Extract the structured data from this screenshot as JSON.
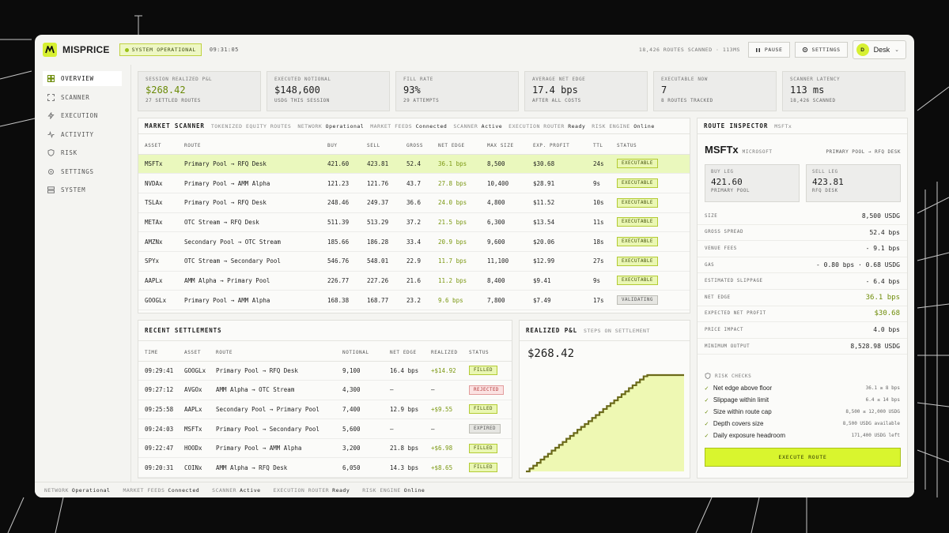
{
  "app": {
    "brand": "MISPRICE",
    "status": "SYSTEM OPERATIONAL",
    "time": "09:31:05"
  },
  "header": {
    "routes_scanned": "18,426 ROUTES SCANNED · 113MS",
    "pause_label": "PAUSE",
    "settings_label": "SETTINGS",
    "user_initial": "D",
    "user_name": "Desk"
  },
  "sidebar": {
    "items": [
      {
        "label": "OVERVIEW",
        "icon": "grid-icon"
      },
      {
        "label": "SCANNER",
        "icon": "scan-icon"
      },
      {
        "label": "EXECUTION",
        "icon": "bolt-icon"
      },
      {
        "label": "ACTIVITY",
        "icon": "activity-icon"
      },
      {
        "label": "RISK",
        "icon": "shield-icon"
      },
      {
        "label": "SETTINGS",
        "icon": "gear-icon"
      },
      {
        "label": "SYSTEM",
        "icon": "server-icon"
      }
    ]
  },
  "kpis": [
    {
      "label": "SESSION REALIZED P&L",
      "value": "$268.42",
      "sub": "27 SETTLED ROUTES"
    },
    {
      "label": "EXECUTED NOTIONAL",
      "value": "$148,600",
      "sub": "USDG THIS SESSION"
    },
    {
      "label": "FILL RATE",
      "value": "93%",
      "sub": "29 ATTEMPTS"
    },
    {
      "label": "AVERAGE NET EDGE",
      "value": "17.4 bps",
      "sub": "AFTER ALL COSTS"
    },
    {
      "label": "EXECUTABLE NOW",
      "value": "7",
      "sub": "8 ROUTES TRACKED"
    },
    {
      "label": "SCANNER LATENCY",
      "value": "113 ms",
      "sub": "18,426 SCANNED"
    }
  ],
  "scanner": {
    "title": "MARKET SCANNER",
    "subtitle": "TOKENIZED EQUITY ROUTES",
    "status": [
      {
        "k": "NETWORK",
        "v": "Operational"
      },
      {
        "k": "MARKET FEEDS",
        "v": "Connected"
      },
      {
        "k": "SCANNER",
        "v": "Active"
      },
      {
        "k": "EXECUTION ROUTER",
        "v": "Ready"
      },
      {
        "k": "RISK ENGINE",
        "v": "Online"
      }
    ],
    "columns": [
      "ASSET",
      "ROUTE",
      "BUY",
      "SELL",
      "GROSS",
      "NET EDGE",
      "MAX SIZE",
      "EXP. PROFIT",
      "TTL",
      "STATUS"
    ],
    "rows": [
      [
        "MSFTx",
        "Primary Pool → RFQ Desk",
        "421.60",
        "423.81",
        "52.4",
        "36.1 bps",
        "8,500",
        "$30.68",
        "24s",
        "EXECUTABLE"
      ],
      [
        "NVDAx",
        "Primary Pool → AMM Alpha",
        "121.23",
        "121.76",
        "43.7",
        "27.8 bps",
        "10,400",
        "$28.91",
        "9s",
        "EXECUTABLE"
      ],
      [
        "TSLAx",
        "Primary Pool → RFQ Desk",
        "248.46",
        "249.37",
        "36.6",
        "24.0 bps",
        "4,800",
        "$11.52",
        "10s",
        "EXECUTABLE"
      ],
      [
        "METAx",
        "OTC Stream → RFQ Desk",
        "511.39",
        "513.29",
        "37.2",
        "21.5 bps",
        "6,300",
        "$13.54",
        "11s",
        "EXECUTABLE"
      ],
      [
        "AMZNx",
        "Secondary Pool → OTC Stream",
        "185.66",
        "186.28",
        "33.4",
        "20.9 bps",
        "9,600",
        "$20.06",
        "18s",
        "EXECUTABLE"
      ],
      [
        "SPYx",
        "OTC Stream → Secondary Pool",
        "546.76",
        "548.01",
        "22.9",
        "11.7 bps",
        "11,100",
        "$12.99",
        "27s",
        "EXECUTABLE"
      ],
      [
        "AAPLx",
        "AMM Alpha → Primary Pool",
        "226.77",
        "227.26",
        "21.6",
        "11.2 bps",
        "8,400",
        "$9.41",
        "9s",
        "EXECUTABLE"
      ],
      [
        "GOOGLx",
        "Primary Pool → AMM Alpha",
        "168.38",
        "168.77",
        "23.2",
        "9.6 bps",
        "7,800",
        "$7.49",
        "17s",
        "VALIDATING"
      ]
    ]
  },
  "settlements": {
    "title": "RECENT SETTLEMENTS",
    "columns": [
      "TIME",
      "ASSET",
      "ROUTE",
      "NOTIONAL",
      "NET EDGE",
      "REALIZED",
      "STATUS"
    ],
    "rows": [
      [
        "09:29:41",
        "GOOGLx",
        "Primary Pool → RFQ Desk",
        "9,100",
        "16.4 bps",
        "+$14.92",
        "FILLED"
      ],
      [
        "09:27:12",
        "AVGOx",
        "AMM Alpha → OTC Stream",
        "4,300",
        "—",
        "—",
        "REJECTED"
      ],
      [
        "09:25:58",
        "AAPLx",
        "Secondary Pool → Primary Pool",
        "7,400",
        "12.9 bps",
        "+$9.55",
        "FILLED"
      ],
      [
        "09:24:03",
        "MSFTx",
        "Primary Pool → Secondary Pool",
        "5,600",
        "—",
        "—",
        "EXPIRED"
      ],
      [
        "09:22:47",
        "HOODx",
        "Primary Pool → AMM Alpha",
        "3,200",
        "21.8 bps",
        "+$6.98",
        "FILLED"
      ],
      [
        "09:20:31",
        "COINx",
        "AMM Alpha → RFQ Desk",
        "6,050",
        "14.3 bps",
        "+$8.65",
        "FILLED"
      ]
    ]
  },
  "pnl": {
    "title": "REALIZED P&L",
    "subtitle": "STEPS ON SETTLEMENT",
    "value": "$268.42"
  },
  "chart_data": {
    "type": "area",
    "title": "REALIZED P&L",
    "series": [
      {
        "values": [
          0,
          8,
          16,
          24,
          33,
          41,
          49,
          58,
          66,
          74,
          82,
          91,
          99,
          107,
          116,
          124,
          132,
          140,
          149,
          157,
          165,
          174,
          182,
          190,
          198,
          207,
          215,
          223,
          232,
          240,
          248,
          256,
          265,
          268.42,
          268.42,
          268.42,
          268.42,
          268.42,
          268.42,
          268.42,
          268.42,
          268.42,
          268.42,
          268.42
        ]
      }
    ],
    "ylim": [
      0,
      268.42
    ],
    "grid": false,
    "colors": {
      "fill": "#eef8b3",
      "line": "#6b6a1a"
    }
  },
  "inspector": {
    "title": "ROUTE INSPECTOR",
    "asset_tag": "MSFTx",
    "asset": "MSFTx",
    "company": "MICROSOFT",
    "route": "PRIMARY POOL → RFQ DESK",
    "buy_leg": {
      "label": "BUY LEG",
      "value": "421.60",
      "venue": "PRIMARY POOL"
    },
    "sell_leg": {
      "label": "SELL LEG",
      "value": "423.81",
      "venue": "RFQ DESK"
    },
    "rows": [
      {
        "label": "SIZE",
        "value": "8,500 USDG"
      },
      {
        "label": "GROSS SPREAD",
        "value": "52.4 bps"
      },
      {
        "label": "VENUE FEES",
        "value": "- 9.1 bps"
      },
      {
        "label": "GAS",
        "value": "- 0.80 bps · 0.68 USDG"
      },
      {
        "label": "ESTIMATED SLIPPAGE",
        "value": "- 6.4 bps"
      },
      {
        "label": "NET EDGE",
        "value": "36.1 bps",
        "accent": true
      },
      {
        "label": "EXPECTED NET PROFIT",
        "value": "$30.68",
        "accent": true
      },
      {
        "label": "PRICE IMPACT",
        "value": "4.0 bps"
      },
      {
        "label": "MINIMUM OUTPUT",
        "value": "8,528.98 USDG"
      }
    ],
    "risk_title": "RISK CHECKS",
    "checks": [
      {
        "label": "Net edge above floor",
        "value": "36.1 ≥ 8 bps"
      },
      {
        "label": "Slippage within limit",
        "value": "6.4 ≤ 14 bps"
      },
      {
        "label": "Size within route cap",
        "value": "8,500 ≤ 12,000 USDG"
      },
      {
        "label": "Depth covers size",
        "value": "8,500 USDG available"
      },
      {
        "label": "Daily exposure headroom",
        "value": "171,400 USDG left"
      }
    ],
    "execute_label": "EXECUTE ROUTE"
  },
  "footer": [
    {
      "k": "NETWORK",
      "v": "Operational"
    },
    {
      "k": "MARKET FEEDS",
      "v": "Connected"
    },
    {
      "k": "SCANNER",
      "v": "Active"
    },
    {
      "k": "EXECUTION ROUTER",
      "v": "Ready"
    },
    {
      "k": "RISK ENGINE",
      "v": "Online"
    }
  ],
  "colors": {
    "accent": "#d7f032",
    "positive": "#7a9710",
    "negative": "#b23434"
  }
}
